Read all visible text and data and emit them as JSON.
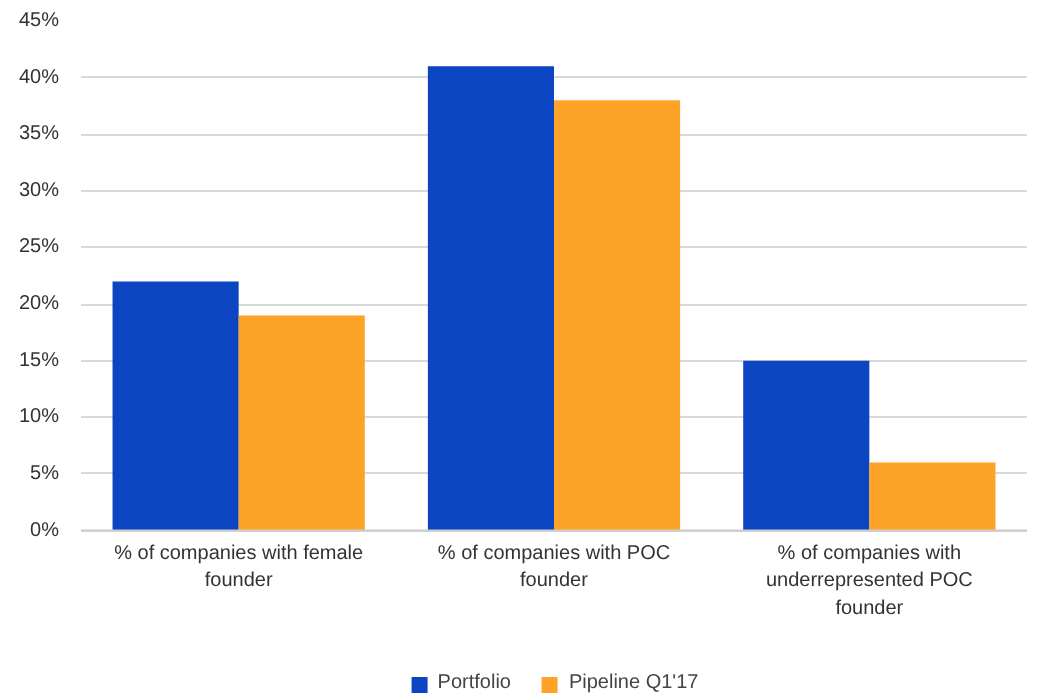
{
  "chart_data": {
    "type": "bar",
    "categories": [
      "% of companies with female founder",
      "% of companies with POC founder",
      "% of companies with underrepresented POC founder"
    ],
    "series": [
      {
        "name": "Portfolio",
        "color": "#0b45c1",
        "values": [
          22,
          41,
          15
        ]
      },
      {
        "name": "Pipeline Q1'17",
        "color": "#fda428",
        "values": [
          19,
          38,
          6
        ]
      }
    ],
    "ylim": [
      0,
      45
    ],
    "yticks": [
      {
        "value": 0,
        "label": "0%"
      },
      {
        "value": 5,
        "label": "5%"
      },
      {
        "value": 10,
        "label": "10%"
      },
      {
        "value": 15,
        "label": "15%"
      },
      {
        "value": 20,
        "label": "20%"
      },
      {
        "value": 25,
        "label": "25%"
      },
      {
        "value": 30,
        "label": "30%"
      },
      {
        "value": 35,
        "label": "35%"
      },
      {
        "value": 40,
        "label": "40%"
      },
      {
        "value": 45,
        "label": "45%"
      }
    ],
    "grid": "y",
    "legend": "bottom"
  }
}
